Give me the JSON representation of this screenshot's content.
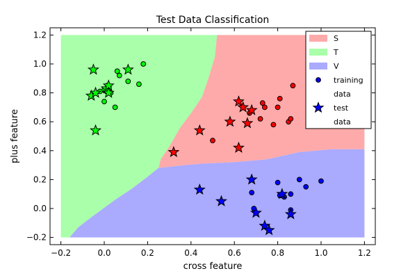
{
  "chart_data": {
    "type": "scatter",
    "title": "Test Data Classification",
    "xlabel": "cross feature",
    "ylabel": "plus feature",
    "xlim": [
      -0.25,
      1.25
    ],
    "ylim": [
      -0.25,
      1.25
    ],
    "xticks": [
      -0.2,
      0.0,
      0.2,
      0.4,
      0.6,
      0.8,
      1.0,
      1.2
    ],
    "yticks": [
      -0.2,
      0.0,
      0.2,
      0.4,
      0.6,
      0.8,
      1.0,
      1.2
    ],
    "xtick_labels": [
      "−0.2",
      "0.0",
      "0.2",
      "0.4",
      "0.6",
      "0.8",
      "1.0",
      "1.2"
    ],
    "ytick_labels": [
      "−0.2",
      "0.0",
      "0.2",
      "0.4",
      "0.6",
      "0.8",
      "1.0",
      "1.2"
    ],
    "grid": false,
    "legend_position": "top-right",
    "decision_regions": [
      {
        "name": "S",
        "color": "#ffaaaa",
        "polygon": [
          [
            0.52,
            1.2
          ],
          [
            1.2,
            1.2
          ],
          [
            1.2,
            0.41
          ],
          [
            1.05,
            0.41
          ],
          [
            0.9,
            0.39
          ],
          [
            0.75,
            0.34
          ],
          [
            0.6,
            0.32
          ],
          [
            0.45,
            0.31
          ],
          [
            0.37,
            0.3
          ],
          [
            0.25,
            0.28
          ],
          [
            0.26,
            0.34
          ],
          [
            0.3,
            0.43
          ],
          [
            0.35,
            0.56
          ],
          [
            0.4,
            0.66
          ],
          [
            0.45,
            0.77
          ],
          [
            0.48,
            0.9
          ],
          [
            0.51,
            1.05
          ]
        ]
      },
      {
        "name": "T",
        "color": "#aaffaa",
        "polygon": [
          [
            -0.2,
            1.2
          ],
          [
            0.52,
            1.2
          ],
          [
            0.51,
            1.05
          ],
          [
            0.48,
            0.9
          ],
          [
            0.45,
            0.77
          ],
          [
            0.4,
            0.66
          ],
          [
            0.35,
            0.56
          ],
          [
            0.3,
            0.43
          ],
          [
            0.26,
            0.34
          ],
          [
            0.25,
            0.28
          ],
          [
            0.2,
            0.22
          ],
          [
            0.13,
            0.14
          ],
          [
            0.05,
            0.06
          ],
          [
            -0.05,
            -0.05
          ],
          [
            -0.12,
            -0.13
          ],
          [
            -0.16,
            -0.2
          ],
          [
            -0.2,
            -0.2
          ]
        ]
      },
      {
        "name": "V",
        "color": "#aaaaff",
        "polygon": [
          [
            -0.16,
            -0.2
          ],
          [
            -0.12,
            -0.13
          ],
          [
            -0.05,
            -0.05
          ],
          [
            0.05,
            0.06
          ],
          [
            0.13,
            0.14
          ],
          [
            0.2,
            0.22
          ],
          [
            0.25,
            0.28
          ],
          [
            0.37,
            0.3
          ],
          [
            0.45,
            0.31
          ],
          [
            0.6,
            0.32
          ],
          [
            0.75,
            0.34
          ],
          [
            0.9,
            0.39
          ],
          [
            1.05,
            0.41
          ],
          [
            1.2,
            0.41
          ],
          [
            1.2,
            -0.2
          ]
        ]
      }
    ],
    "series": [
      {
        "class": "T",
        "kind": "training",
        "color": "#00ff00",
        "points": [
          [
            0.0,
            0.82
          ],
          [
            0.01,
            0.81
          ],
          [
            0.02,
            0.83
          ],
          [
            0.03,
            0.8
          ],
          [
            0.06,
            0.95
          ],
          [
            0.07,
            0.92
          ],
          [
            0.11,
            0.88
          ],
          [
            0.16,
            0.86
          ],
          [
            0.18,
            1.0
          ],
          [
            0.05,
            0.7
          ],
          [
            0.0,
            0.74
          ],
          [
            -0.02,
            0.81
          ]
        ]
      },
      {
        "class": "S",
        "kind": "training",
        "color": "#ff0000",
        "points": [
          [
            0.5,
            0.47
          ],
          [
            0.67,
            0.66
          ],
          [
            0.72,
            0.62
          ],
          [
            0.73,
            0.73
          ],
          [
            0.74,
            0.7
          ],
          [
            0.78,
            0.58
          ],
          [
            0.8,
            0.7
          ],
          [
            0.81,
            0.76
          ],
          [
            0.85,
            0.6
          ],
          [
            0.86,
            0.62
          ],
          [
            0.87,
            0.85
          ]
        ]
      },
      {
        "class": "V",
        "kind": "training",
        "color": "#0000ff",
        "points": [
          [
            0.68,
            0.11
          ],
          [
            0.69,
            0.0
          ],
          [
            0.7,
            -0.03
          ],
          [
            0.8,
            0.18
          ],
          [
            0.81,
            0.09
          ],
          [
            0.82,
            0.09
          ],
          [
            0.83,
            0.08
          ],
          [
            0.86,
            0.1
          ],
          [
            0.86,
            -0.01
          ],
          [
            0.9,
            0.2
          ],
          [
            0.93,
            0.15
          ],
          [
            1.0,
            0.19
          ]
        ]
      },
      {
        "class": "T",
        "kind": "test",
        "color": "#00ff00",
        "points": [
          [
            -0.05,
            0.96
          ],
          [
            -0.06,
            0.78
          ],
          [
            -0.04,
            0.8
          ],
          [
            -0.04,
            0.54
          ],
          [
            0.01,
            0.83
          ],
          [
            0.02,
            0.85
          ],
          [
            0.02,
            0.8
          ],
          [
            0.11,
            0.96
          ]
        ]
      },
      {
        "class": "S",
        "kind": "test",
        "color": "#ff0000",
        "points": [
          [
            0.32,
            0.39
          ],
          [
            0.44,
            0.54
          ],
          [
            0.58,
            0.6
          ],
          [
            0.62,
            0.74
          ],
          [
            0.62,
            0.42
          ],
          [
            0.64,
            0.7
          ],
          [
            0.66,
            0.59
          ],
          [
            0.68,
            0.68
          ]
        ]
      },
      {
        "class": "V",
        "kind": "test",
        "color": "#0000ff",
        "points": [
          [
            0.44,
            0.13
          ],
          [
            0.54,
            0.05
          ],
          [
            0.68,
            0.2
          ],
          [
            0.7,
            -0.03
          ],
          [
            0.74,
            -0.12
          ],
          [
            0.76,
            -0.15
          ],
          [
            0.82,
            0.1
          ],
          [
            0.86,
            -0.04
          ]
        ]
      }
    ],
    "legend": [
      {
        "label": "S",
        "kind": "patch",
        "color": "#ffaaaa"
      },
      {
        "label": "T",
        "kind": "patch",
        "color": "#aaffaa"
      },
      {
        "label": "V",
        "kind": "patch",
        "color": "#aaaaff"
      },
      {
        "label": "training",
        "label2": "data",
        "kind": "circle",
        "color": "#0000ff"
      },
      {
        "label": "test",
        "label2": "data",
        "kind": "star",
        "color": "#0000ff"
      }
    ]
  }
}
